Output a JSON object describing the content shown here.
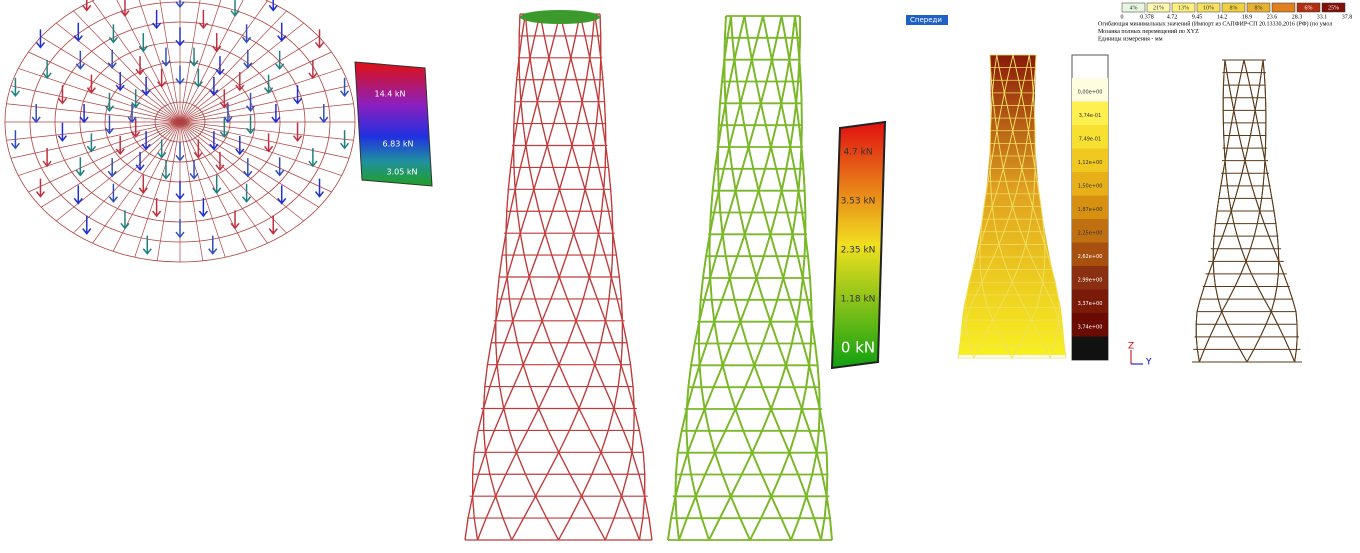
{
  "load_legend": {
    "labels": [
      "14.4 kN",
      "6.83 kN",
      "3.05 kN"
    ]
  },
  "force_legend": {
    "labels": [
      "4.7 kN",
      "3.53 kN",
      "2.35 kN",
      "1.18 kN",
      "0 kN"
    ]
  },
  "view_button": "Спереди",
  "scale": {
    "percentages": [
      "4%",
      "21%",
      "13%",
      "10%",
      "8%",
      "8%",
      "6%",
      "25%"
    ],
    "values": [
      "0",
      "0.378",
      "4.72",
      "9.45",
      "14.2",
      "18.9",
      "23.6",
      "28.3",
      "33.1",
      "37.8"
    ]
  },
  "caption": [
    "Огибающая минимальных значений (Импорт из САПФИР-СП 20.13330.2016 (РФ) (по умол",
    "Мозаика полных перемещений по XYZ",
    "Единицы измерения - мм"
  ],
  "displacement_legend": {
    "labels": [
      "0,00e+00",
      "3,74e-01",
      "7,49e-01",
      "1,12e+00",
      "1,50e+00",
      "1,87e+00",
      "2,25e+00",
      "2,62e+00",
      "2,99e+00",
      "3,37e+00",
      "3,74e+00"
    ]
  },
  "axes": {
    "z": "Z",
    "y": "Y"
  }
}
